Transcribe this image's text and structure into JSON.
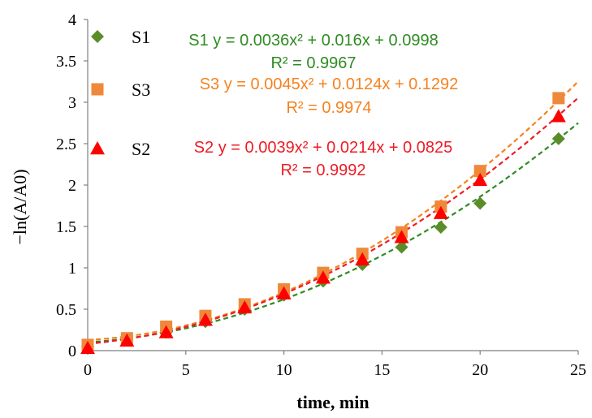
{
  "chart_data": {
    "type": "scatter",
    "title": "",
    "xlabel": "time, min",
    "ylabel": "−ln(A/A0)",
    "xlim": [
      0,
      25
    ],
    "ylim": [
      0,
      4
    ],
    "xticks": [
      0,
      5,
      10,
      15,
      20,
      25
    ],
    "yticks": [
      0,
      0.5,
      1,
      1.5,
      2,
      2.5,
      3,
      3.5,
      4
    ],
    "xtick_labels": [
      "0",
      "5",
      "10",
      "15",
      "20",
      "25"
    ],
    "ytick_labels": [
      "0",
      "0.5",
      "1",
      "1.5",
      "2",
      "2.5",
      "3",
      "3.5",
      "4"
    ],
    "grid": false,
    "legend_position": "top-left",
    "series": [
      {
        "name": "S1",
        "marker": "diamond",
        "color": "#5b8c2a",
        "trend_color": "#2e8b22",
        "x": [
          0,
          2,
          4,
          6,
          8,
          10,
          12,
          14,
          16,
          18,
          20,
          24
        ],
        "y": [
          0.05,
          0.13,
          0.22,
          0.35,
          0.5,
          0.67,
          0.84,
          1.04,
          1.25,
          1.49,
          1.78,
          2.56
        ],
        "trendline": {
          "a": 0.0036,
          "b": 0.016,
          "c": 0.0998
        },
        "equation": "S1 y = 0.0036x² + 0.016x + 0.0998",
        "r2": "R² = 0.9967"
      },
      {
        "name": "S3",
        "marker": "square",
        "color": "#f0883a",
        "trend_color": "#f5821f",
        "x": [
          0,
          2,
          4,
          6,
          8,
          10,
          12,
          14,
          16,
          18,
          20,
          24
        ],
        "y": [
          0.07,
          0.15,
          0.29,
          0.42,
          0.56,
          0.74,
          0.94,
          1.17,
          1.43,
          1.74,
          2.17,
          3.05
        ],
        "trendline": {
          "a": 0.0045,
          "b": 0.0124,
          "c": 0.1292
        },
        "equation": "S3 y = 0.0045x² + 0.0124x + 0.1292",
        "r2": "R² = 0.9974"
      },
      {
        "name": "S2",
        "marker": "triangle",
        "color": "#ff0000",
        "trend_color": "#ee1c25",
        "x": [
          0,
          2,
          4,
          6,
          8,
          10,
          12,
          14,
          16,
          18,
          20,
          24
        ],
        "y": [
          0.03,
          0.12,
          0.22,
          0.37,
          0.52,
          0.69,
          0.88,
          1.1,
          1.37,
          1.66,
          2.06,
          2.83
        ],
        "trendline": {
          "a": 0.0039,
          "b": 0.0214,
          "c": 0.0825
        },
        "equation": "S2 y = 0.0039x² + 0.0214x + 0.0825",
        "r2": "R² = 0.9992"
      }
    ]
  }
}
